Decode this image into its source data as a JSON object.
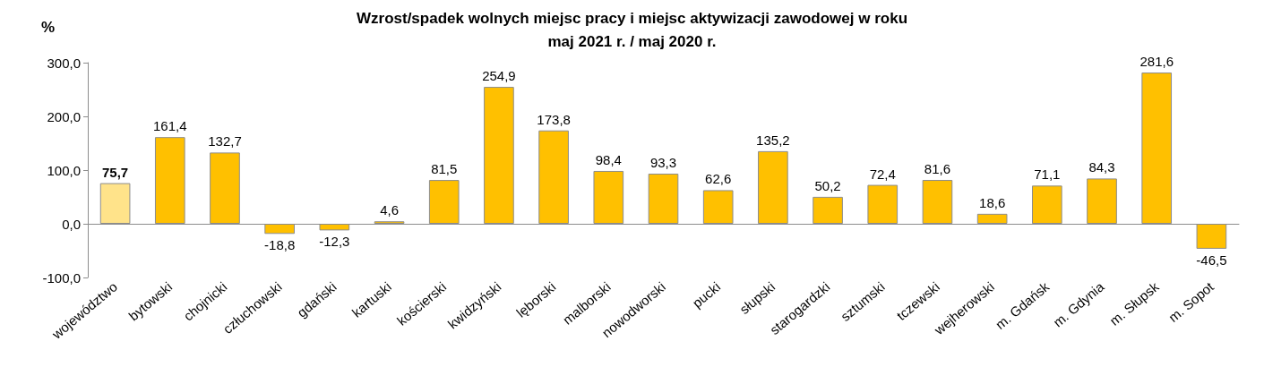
{
  "chart_data": {
    "type": "bar",
    "title": "Wzrost/spadek wolnych miejsc pracy i miejsc aktywizacji zawodowej w roku\nmaj 2021 r. / maj 2020 r.",
    "ylabel": "%",
    "categories": [
      "województwo",
      "bytowski",
      "chojnicki",
      "człuchowski",
      "gdański",
      "kartuski",
      "kościerski",
      "kwidzyński",
      "lęborski",
      "malborski",
      "nowodworski",
      "pucki",
      "słupski",
      "starogardzki",
      "sztumski",
      "tczewski",
      "wejherowski",
      "m. Gdańsk",
      "m. Gdynia",
      "m. Słupsk",
      "m. Sopot"
    ],
    "values": [
      75.7,
      161.4,
      132.7,
      -18.8,
      -12.3,
      4.6,
      81.5,
      254.9,
      173.8,
      98.4,
      93.3,
      62.6,
      135.2,
      50.2,
      72.4,
      81.6,
      18.6,
      71.1,
      84.3,
      281.6,
      -46.5
    ],
    "value_labels": [
      "75,7",
      "161,4",
      "132,7",
      "-18,8",
      "-12,3",
      "4,6",
      "81,5",
      "254,9",
      "173,8",
      "98,4",
      "93,3",
      "62,6",
      "135,2",
      "50,2",
      "72,4",
      "81,6",
      "18,6",
      "71,1",
      "84,3",
      "281,6",
      "-46,5"
    ],
    "colors": [
      "#ffe38a",
      "#ffc000",
      "#ffc000",
      "#ffc000",
      "#ffc000",
      "#ffc000",
      "#ffc000",
      "#ffc000",
      "#ffc000",
      "#ffc000",
      "#ffc000",
      "#ffc000",
      "#ffc000",
      "#ffc000",
      "#ffc000",
      "#ffc000",
      "#ffc000",
      "#ffc000",
      "#ffc000",
      "#ffc000",
      "#ffc000"
    ],
    "ylim": [
      -100,
      300
    ],
    "yticks": [
      {
        "value": -100,
        "label": "-100,0"
      },
      {
        "value": 0,
        "label": "0,0"
      },
      {
        "value": 100,
        "label": "100,0"
      },
      {
        "value": 200,
        "label": "200,0"
      },
      {
        "value": 300,
        "label": "300,0"
      }
    ]
  }
}
